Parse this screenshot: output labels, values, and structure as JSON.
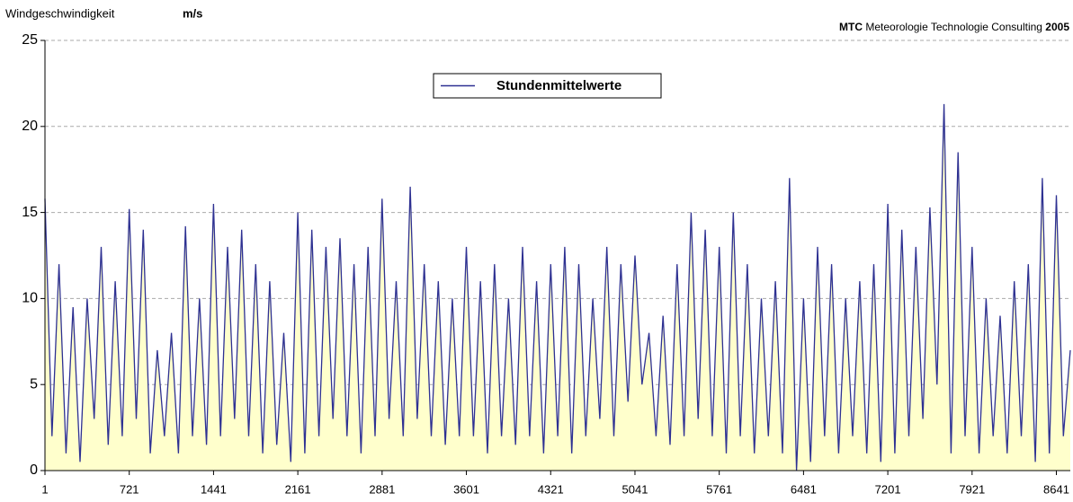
{
  "chart_data": {
    "type": "line",
    "y_label": "Windgeschwindigkeit",
    "y_unit": "m/s",
    "credit_bold": "MTC",
    "credit": "Meteorologie Technologie Consulting",
    "credit_year": "2005",
    "x": [
      1,
      61,
      121,
      181,
      241,
      301,
      361,
      421,
      481,
      541,
      601,
      661,
      721,
      781,
      841,
      901,
      961,
      1021,
      1081,
      1141,
      1201,
      1261,
      1321,
      1381,
      1441,
      1501,
      1561,
      1621,
      1681,
      1741,
      1801,
      1861,
      1921,
      1981,
      2041,
      2101,
      2161,
      2221,
      2281,
      2341,
      2401,
      2461,
      2521,
      2581,
      2641,
      2701,
      2761,
      2821,
      2881,
      2941,
      3001,
      3061,
      3121,
      3181,
      3241,
      3301,
      3361,
      3421,
      3481,
      3541,
      3601,
      3661,
      3721,
      3781,
      3841,
      3901,
      3961,
      4021,
      4081,
      4141,
      4201,
      4261,
      4321,
      4381,
      4441,
      4501,
      4561,
      4621,
      4681,
      4741,
      4801,
      4861,
      4921,
      4981,
      5041,
      5101,
      5161,
      5221,
      5281,
      5341,
      5401,
      5461,
      5521,
      5581,
      5641,
      5701,
      5761,
      5821,
      5881,
      5941,
      6001,
      6061,
      6121,
      6181,
      6241,
      6301,
      6361,
      6421,
      6481,
      6541,
      6601,
      6661,
      6721,
      6781,
      6841,
      6901,
      6961,
      7021,
      7081,
      7141,
      7201,
      7261,
      7321,
      7381,
      7441,
      7501,
      7561,
      7621,
      7681,
      7741,
      7801,
      7861,
      7921,
      7981,
      8041,
      8101,
      8161,
      8221,
      8281,
      8341,
      8401,
      8461,
      8521,
      8581,
      8641,
      8701,
      8760
    ],
    "series": [
      {
        "name": "Stundenmittelwerte",
        "color": "#2e3192",
        "fill": "#ffffcc",
        "values": [
          15.8,
          2,
          12,
          1,
          9.5,
          0.5,
          10,
          3,
          13,
          1.5,
          11,
          2,
          15.2,
          3,
          14,
          1,
          7,
          2,
          8,
          1,
          14.2,
          2,
          10,
          1.5,
          15.5,
          2,
          13,
          3,
          14,
          2,
          12,
          1,
          11,
          1.5,
          8,
          0.5,
          15,
          1,
          14,
          2,
          13,
          3,
          13.5,
          2,
          12,
          1,
          13,
          2,
          15.8,
          3,
          11,
          2,
          16.5,
          3,
          12,
          2,
          11,
          1.5,
          10,
          2,
          13,
          2,
          11,
          1,
          12,
          2,
          10,
          1.5,
          13,
          2,
          11,
          1,
          12,
          2,
          13,
          1,
          12,
          2,
          10,
          3,
          13,
          2,
          12,
          4,
          12.5,
          5,
          8,
          2,
          9,
          1.5,
          12,
          2,
          15,
          3,
          14,
          2,
          13,
          1,
          15,
          2,
          12,
          1,
          10,
          2,
          11,
          1,
          17,
          0,
          10,
          0.5,
          13,
          2,
          12,
          1,
          10,
          2,
          11,
          1,
          12,
          0.5,
          15.5,
          1,
          14,
          2,
          13,
          3,
          15.3,
          5,
          21.3,
          1,
          18.5,
          2,
          13,
          1,
          10,
          2,
          9,
          1,
          11,
          2,
          12,
          0.5,
          17,
          1,
          16,
          2,
          7
        ]
      }
    ],
    "xlim": [
      1,
      8760
    ],
    "xticks": [
      1,
      721,
      1441,
      2161,
      2881,
      3601,
      4321,
      5041,
      5761,
      6481,
      7201,
      7921,
      8641
    ],
    "ylim": [
      0,
      25
    ],
    "yticks": [
      0,
      5,
      10,
      15,
      20,
      25
    ],
    "grid": true,
    "legend": "top-center"
  }
}
